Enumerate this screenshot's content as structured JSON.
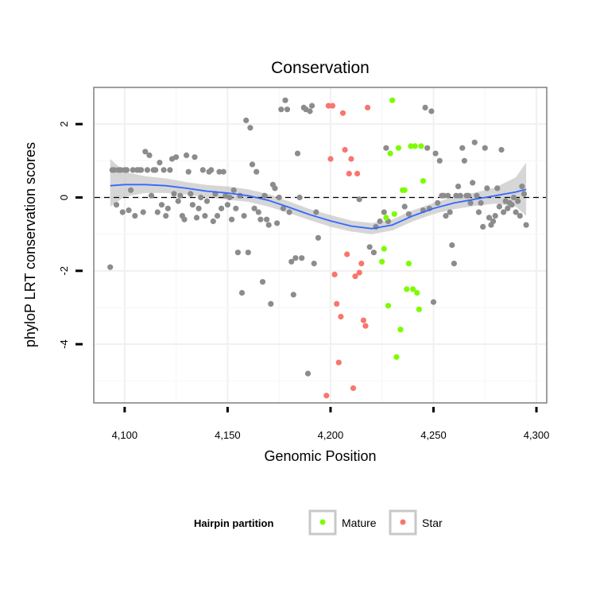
{
  "chart_data": {
    "type": "scatter",
    "title": "Conservation",
    "xlabel": "Genomic Position",
    "ylabel": "phyloP LRT conservation scores",
    "xlim": [
      4085,
      4305
    ],
    "ylim": [
      -5.6,
      3.0
    ],
    "x_ticks": [
      4100,
      4150,
      4200,
      4250,
      4300
    ],
    "x_tick_labels": [
      "4,100",
      "4,150",
      "4,200",
      "4,250",
      "4,300"
    ],
    "y_ticks": [
      2,
      0,
      -2,
      -4
    ],
    "y_tick_labels": [
      "2",
      "0",
      "-2",
      "-4"
    ],
    "grid": true,
    "legend_position": "bottom",
    "legend": {
      "title": "Hairpin partition",
      "entries": [
        {
          "label": "Mature",
          "color": "#7CFC00"
        },
        {
          "label": "Star",
          "color": "#F8766D"
        }
      ]
    },
    "colors": {
      "other": "#8C8C8C",
      "Mature": "#7CFC00",
      "Star": "#F8766D",
      "smooth": "#3366FF",
      "ribbon": "#C8C8C8",
      "panel_border": "#7F7F7F",
      "zero_line": "#000000"
    },
    "reference_line": {
      "y": 0,
      "style": "dashed"
    },
    "series": [
      {
        "name": "Other",
        "points": [
          [
            4093,
            -1.9
          ],
          [
            4094,
            0.75
          ],
          [
            4095,
            0.75
          ],
          [
            4096,
            -0.2
          ],
          [
            4097,
            0.75
          ],
          [
            4098,
            0.75
          ],
          [
            4099,
            -0.4
          ],
          [
            4100,
            0.75
          ],
          [
            4101,
            0.75
          ],
          [
            4102,
            -0.35
          ],
          [
            4103,
            0.2
          ],
          [
            4104,
            0.75
          ],
          [
            4105,
            -0.5
          ],
          [
            4106,
            0.75
          ],
          [
            4107,
            0.75
          ],
          [
            4108,
            0.75
          ],
          [
            4109,
            -0.4
          ],
          [
            4110,
            1.25
          ],
          [
            4111,
            0.75
          ],
          [
            4112,
            1.15
          ],
          [
            4113,
            0.05
          ],
          [
            4114,
            0.75
          ],
          [
            4115,
            0.75
          ],
          [
            4116,
            -0.4
          ],
          [
            4117,
            0.95
          ],
          [
            4118,
            -0.2
          ],
          [
            4119,
            0.75
          ],
          [
            4120,
            -0.5
          ],
          [
            4121,
            -0.3
          ],
          [
            4122,
            0.75
          ],
          [
            4123,
            1.05
          ],
          [
            4124,
            0.1
          ],
          [
            4125,
            1.1
          ],
          [
            4126,
            -0.1
          ],
          [
            4127,
            0.05
          ],
          [
            4128,
            -0.5
          ],
          [
            4129,
            -0.6
          ],
          [
            4130,
            1.15
          ],
          [
            4131,
            0.7
          ],
          [
            4132,
            0.1
          ],
          [
            4133,
            -0.2
          ],
          [
            4134,
            1.1
          ],
          [
            4135,
            -0.55
          ],
          [
            4136,
            -0.3
          ],
          [
            4137,
            0.0
          ],
          [
            4138,
            0.75
          ],
          [
            4139,
            -0.5
          ],
          [
            4140,
            -0.1
          ],
          [
            4141,
            0.7
          ],
          [
            4142,
            0.75
          ],
          [
            4143,
            -0.65
          ],
          [
            4144,
            0.1
          ],
          [
            4145,
            -0.5
          ],
          [
            4146,
            0.7
          ],
          [
            4147,
            -0.3
          ],
          [
            4148,
            0.7
          ],
          [
            4149,
            0.05
          ],
          [
            4150,
            -0.2
          ],
          [
            4151,
            0.0
          ],
          [
            4152,
            -0.6
          ],
          [
            4153,
            0.2
          ],
          [
            4154,
            -0.3
          ],
          [
            4155,
            -1.5
          ],
          [
            4156,
            0.05
          ],
          [
            4157,
            -2.6
          ],
          [
            4158,
            -0.5
          ],
          [
            4159,
            2.1
          ],
          [
            4160,
            -1.5
          ],
          [
            4161,
            1.9
          ],
          [
            4162,
            0.9
          ],
          [
            4163,
            -0.3
          ],
          [
            4164,
            0.7
          ],
          [
            4165,
            -0.4
          ],
          [
            4166,
            -0.6
          ],
          [
            4167,
            -2.3
          ],
          [
            4168,
            0.05
          ],
          [
            4169,
            -0.6
          ],
          [
            4170,
            -0.75
          ],
          [
            4171,
            -2.9
          ],
          [
            4172,
            0.35
          ],
          [
            4173,
            0.25
          ],
          [
            4174,
            -0.7
          ],
          [
            4175,
            0.0
          ],
          [
            4176,
            2.4
          ],
          [
            4177,
            -0.3
          ],
          [
            4178,
            2.65
          ],
          [
            4179,
            2.4
          ],
          [
            4180,
            -0.4
          ],
          [
            4181,
            -1.75
          ],
          [
            4182,
            -2.65
          ],
          [
            4183,
            -1.65
          ],
          [
            4184,
            1.2
          ],
          [
            4185,
            0.0
          ],
          [
            4186,
            -1.65
          ],
          [
            4187,
            2.45
          ],
          [
            4188,
            2.4
          ],
          [
            4189,
            -4.8
          ],
          [
            4190,
            2.35
          ],
          [
            4191,
            2.5
          ],
          [
            4192,
            -1.8
          ],
          [
            4193,
            -0.4
          ],
          [
            4194,
            -1.1
          ],
          [
            4214,
            -0.05
          ],
          [
            4219,
            -1.35
          ],
          [
            4221,
            -1.5
          ],
          [
            4222,
            -0.8
          ],
          [
            4224,
            -0.65
          ],
          [
            4226,
            -0.4
          ],
          [
            4227,
            1.35
          ],
          [
            4228,
            -0.65
          ],
          [
            4236,
            -0.25
          ],
          [
            4238,
            -0.45
          ],
          [
            4245,
            -0.35
          ],
          [
            4246,
            2.45
          ],
          [
            4247,
            1.35
          ],
          [
            4248,
            -0.3
          ],
          [
            4249,
            2.35
          ],
          [
            4250,
            -2.85
          ],
          [
            4251,
            1.2
          ],
          [
            4252,
            -0.15
          ],
          [
            4253,
            1.0
          ],
          [
            4254,
            0.05
          ],
          [
            4255,
            0.05
          ],
          [
            4256,
            -0.5
          ],
          [
            4257,
            0.05
          ],
          [
            4258,
            -0.4
          ],
          [
            4259,
            -1.3
          ],
          [
            4260,
            -1.8
          ],
          [
            4261,
            0.05
          ],
          [
            4262,
            0.3
          ],
          [
            4263,
            0.05
          ],
          [
            4264,
            1.35
          ],
          [
            4265,
            1.0
          ],
          [
            4266,
            0.05
          ],
          [
            4267,
            0.05
          ],
          [
            4268,
            -0.15
          ],
          [
            4269,
            0.4
          ],
          [
            4270,
            1.5
          ],
          [
            4271,
            0.05
          ],
          [
            4272,
            -0.4
          ],
          [
            4273,
            -0.15
          ],
          [
            4274,
            -0.8
          ],
          [
            4275,
            1.35
          ],
          [
            4276,
            0.25
          ],
          [
            4277,
            -0.55
          ],
          [
            4278,
            -0.75
          ],
          [
            4279,
            -0.65
          ],
          [
            4280,
            -0.5
          ],
          [
            4281,
            0.25
          ],
          [
            4282,
            -0.25
          ],
          [
            4283,
            1.3
          ],
          [
            4284,
            -0.4
          ],
          [
            4285,
            -0.1
          ],
          [
            4286,
            -0.3
          ],
          [
            4287,
            -0.15
          ],
          [
            4288,
            -0.2
          ],
          [
            4289,
            0.0
          ],
          [
            4290,
            -0.4
          ],
          [
            4291,
            -0.1
          ],
          [
            4292,
            -0.5
          ],
          [
            4293,
            0.3
          ],
          [
            4294,
            0.1
          ],
          [
            4295,
            -0.75
          ]
        ]
      },
      {
        "name": "Mature",
        "points": [
          [
            4225,
            -1.75
          ],
          [
            4226,
            -1.4
          ],
          [
            4227,
            -0.55
          ],
          [
            4228,
            -2.95
          ],
          [
            4229,
            1.2
          ],
          [
            4230,
            2.65
          ],
          [
            4231,
            -0.45
          ],
          [
            4232,
            -4.35
          ],
          [
            4233,
            1.35
          ],
          [
            4234,
            -3.6
          ],
          [
            4235,
            0.2
          ],
          [
            4236,
            0.2
          ],
          [
            4237,
            -2.5
          ],
          [
            4238,
            -1.8
          ],
          [
            4239,
            1.4
          ],
          [
            4240,
            -2.5
          ],
          [
            4241,
            1.4
          ],
          [
            4242,
            -2.6
          ],
          [
            4243,
            -3.05
          ],
          [
            4244,
            1.4
          ],
          [
            4245,
            0.45
          ]
        ]
      },
      {
        "name": "Star",
        "points": [
          [
            4198,
            -5.4
          ],
          [
            4199,
            2.5
          ],
          [
            4200,
            1.05
          ],
          [
            4201,
            2.5
          ],
          [
            4202,
            -2.1
          ],
          [
            4203,
            -2.9
          ],
          [
            4204,
            -4.5
          ],
          [
            4205,
            -3.25
          ],
          [
            4206,
            2.3
          ],
          [
            4207,
            1.3
          ],
          [
            4208,
            -1.55
          ],
          [
            4209,
            0.65
          ],
          [
            4210,
            1.05
          ],
          [
            4211,
            -5.2
          ],
          [
            4212,
            -2.15
          ],
          [
            4213,
            0.65
          ],
          [
            4214,
            -2.05
          ],
          [
            4215,
            -1.8
          ],
          [
            4216,
            -3.35
          ],
          [
            4217,
            -3.5
          ],
          [
            4218,
            2.45
          ]
        ]
      }
    ],
    "smooth": {
      "x": [
        4093,
        4100,
        4110,
        4120,
        4130,
        4140,
        4150,
        4160,
        4170,
        4180,
        4190,
        4200,
        4210,
        4220,
        4230,
        4240,
        4250,
        4260,
        4270,
        4280,
        4290,
        4295
      ],
      "y": [
        0.32,
        0.35,
        0.35,
        0.32,
        0.25,
        0.17,
        0.12,
        0.05,
        -0.08,
        -0.27,
        -0.47,
        -0.64,
        -0.78,
        -0.85,
        -0.75,
        -0.5,
        -0.3,
        -0.15,
        -0.05,
        0.05,
        0.15,
        0.22
      ],
      "lower": [
        -0.25,
        0.02,
        0.12,
        0.12,
        0.08,
        0.0,
        -0.06,
        -0.12,
        -0.25,
        -0.43,
        -0.62,
        -0.8,
        -0.93,
        -1.0,
        -0.9,
        -0.65,
        -0.45,
        -0.32,
        -0.23,
        -0.17,
        -0.25,
        -0.5
      ],
      "upper": [
        1.05,
        0.7,
        0.58,
        0.52,
        0.42,
        0.34,
        0.3,
        0.22,
        0.09,
        -0.11,
        -0.32,
        -0.48,
        -0.63,
        -0.7,
        -0.6,
        -0.35,
        -0.15,
        0.02,
        0.13,
        0.27,
        0.55,
        0.95
      ]
    }
  }
}
